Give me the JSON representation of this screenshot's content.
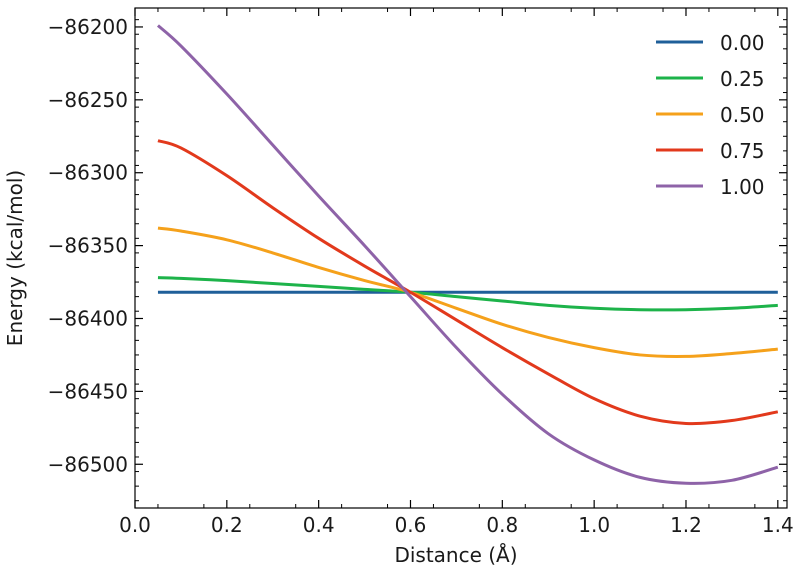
{
  "chart_data": {
    "type": "line",
    "title": "",
    "xlabel": "Distance (Å)",
    "ylabel": "Energy (kcal/mol)",
    "xlim": [
      0.0,
      1.42
    ],
    "ylim": [
      -86530,
      -86187
    ],
    "xticks": [
      0.0,
      0.2,
      0.4,
      0.6,
      0.8,
      1.0,
      1.2,
      1.4
    ],
    "xtick_labels": [
      "0.0",
      "0.2",
      "0.4",
      "0.6",
      "0.8",
      "1.0",
      "1.2",
      "1.4"
    ],
    "yticks": [
      -86200,
      -86250,
      -86300,
      -86350,
      -86400,
      -86450,
      -86500
    ],
    "ytick_labels": [
      "−86200",
      "−86250",
      "−86300",
      "−86350",
      "−86400",
      "−86450",
      "−86500"
    ],
    "grid": false,
    "legend": "top-right",
    "x": [
      0.05,
      0.1,
      0.2,
      0.3,
      0.4,
      0.5,
      0.6,
      0.7,
      0.8,
      0.9,
      1.0,
      1.1,
      1.2,
      1.3,
      1.4
    ],
    "series": [
      {
        "name": "0.00",
        "color": "#1f5f99",
        "values": [
          -86382,
          -86382,
          -86382,
          -86382,
          -86382,
          -86382,
          -86382,
          -86382,
          -86382,
          -86382,
          -86382,
          -86382,
          -86382,
          -86382,
          -86382
        ]
      },
      {
        "name": "0.25",
        "color": "#1db34a",
        "values": [
          -86372,
          -86372.5,
          -86374,
          -86376,
          -86378,
          -86380,
          -86382,
          -86385,
          -86388,
          -86391,
          -86393,
          -86394,
          -86394,
          -86393,
          -86391
        ]
      },
      {
        "name": "0.50",
        "color": "#f5a11b",
        "values": [
          -86338,
          -86340,
          -86346,
          -86355,
          -86365,
          -86374,
          -86382,
          -86393,
          -86404,
          -86413,
          -86420,
          -86425,
          -86426,
          -86424,
          -86421
        ]
      },
      {
        "name": "0.75",
        "color": "#e2391c",
        "values": [
          -86278,
          -86283,
          -86302,
          -86324,
          -86345,
          -86364,
          -86382,
          -86401,
          -86420,
          -86438,
          -86455,
          -86467,
          -86472,
          -86470,
          -86464
        ]
      },
      {
        "name": "1.00",
        "color": "#8e63a8",
        "values": [
          -86199,
          -86213,
          -86246,
          -86281,
          -86316,
          -86350,
          -86385,
          -86420,
          -86452,
          -86479,
          -86497,
          -86509,
          -86513,
          -86511,
          -86502
        ]
      }
    ]
  }
}
